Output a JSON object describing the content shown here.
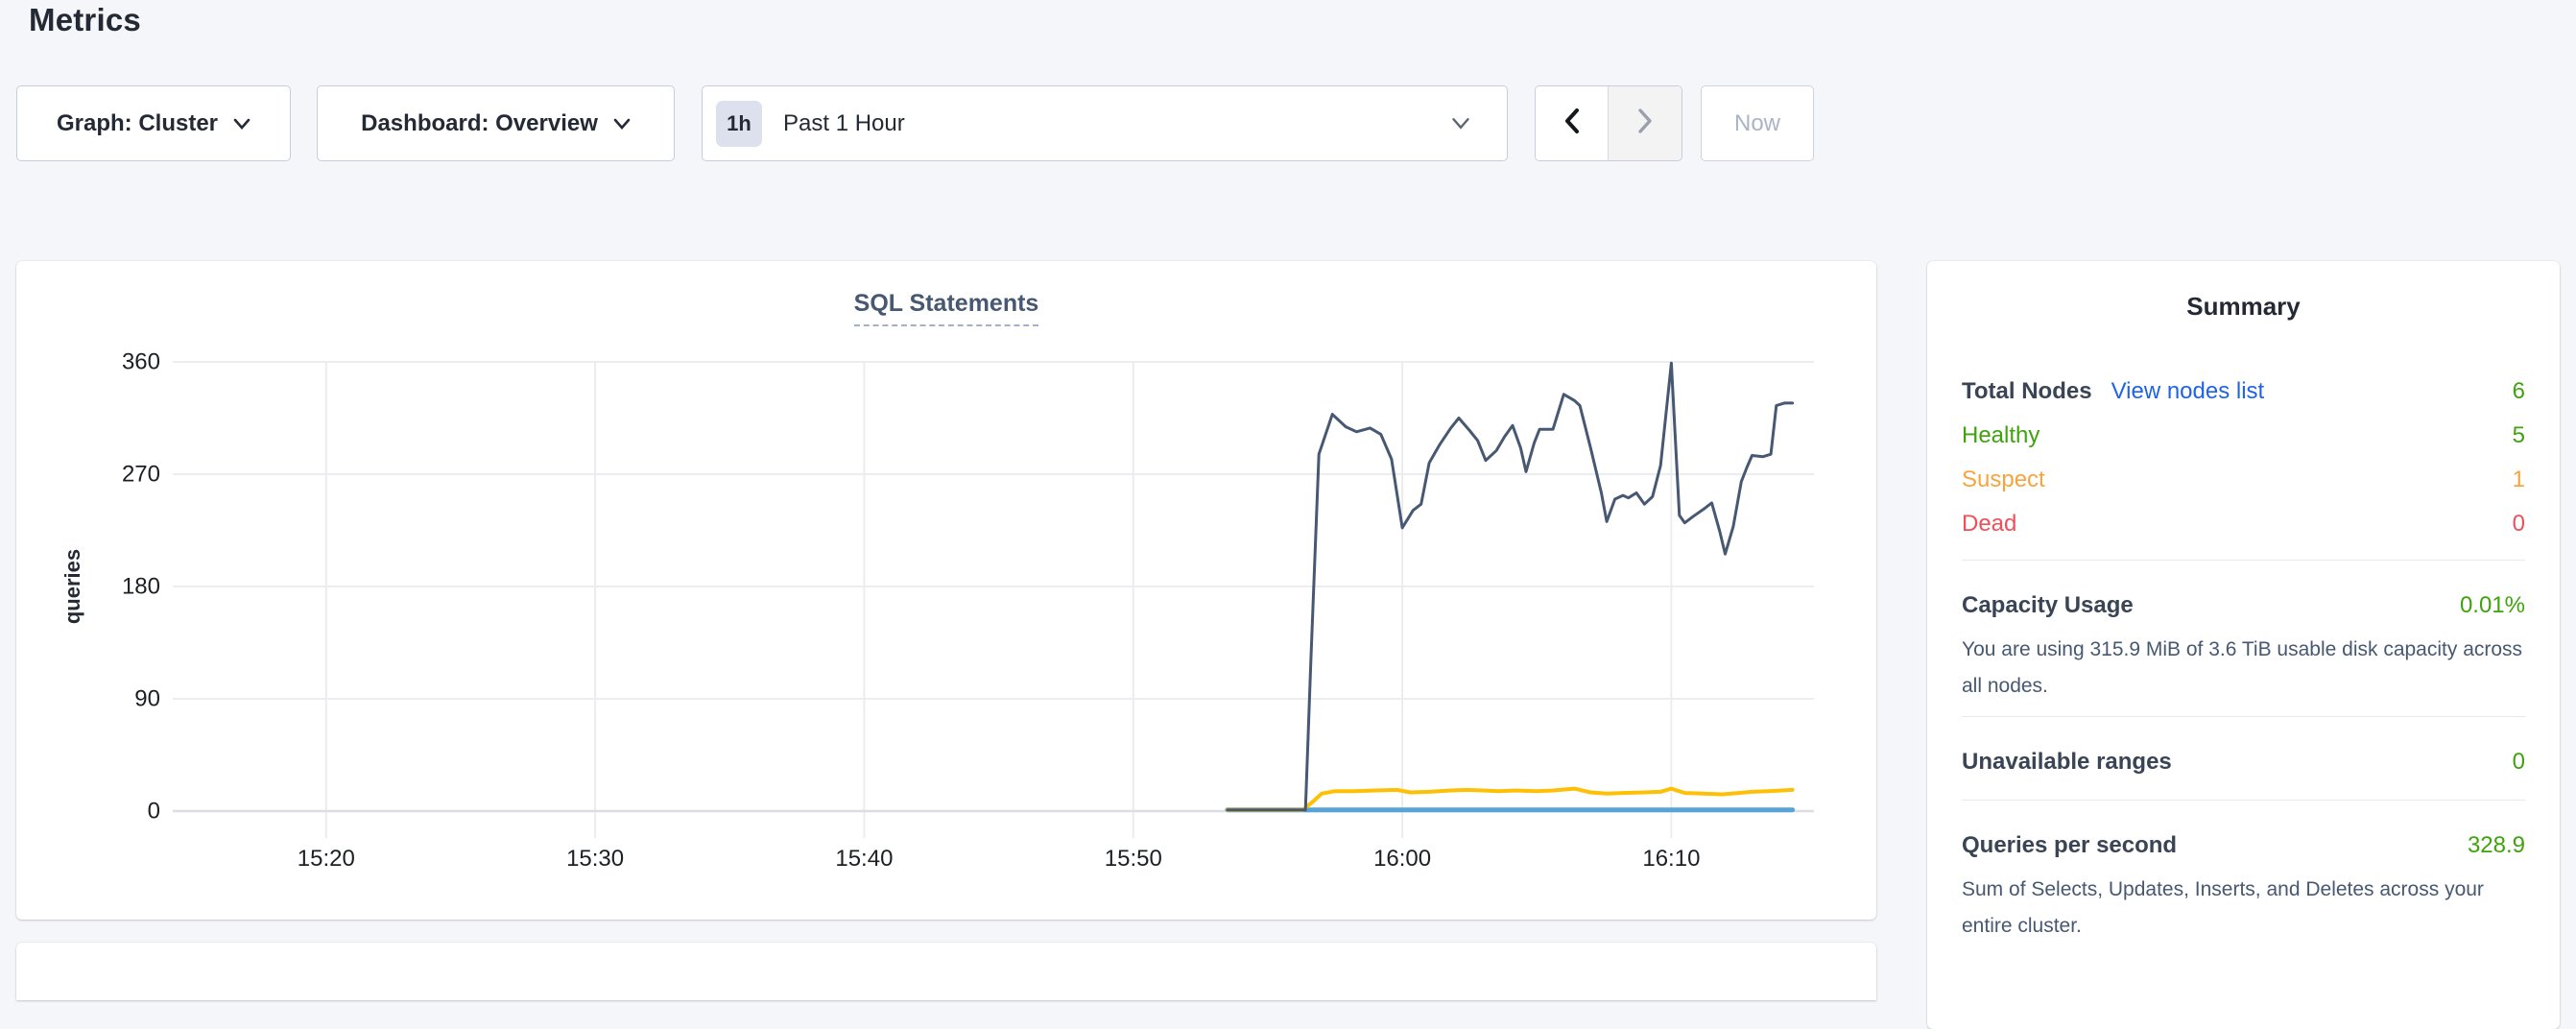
{
  "page": {
    "title": "Metrics"
  },
  "toolbar": {
    "graph_dropdown_label": "Graph: Cluster",
    "dashboard_dropdown_label": "Dashboard: Overview",
    "time_badge": "1h",
    "time_label": "Past 1 Hour",
    "now_label": "Now"
  },
  "chart_data": {
    "type": "line",
    "title": "SQL Statements",
    "ylabel": "queries",
    "xlabel": "",
    "x_axis_unit": "minutes after 15:00",
    "xlim": [
      14.3,
      75.3
    ],
    "ylim": [
      0,
      375
    ],
    "grid": true,
    "legend_position": "none",
    "y_ticks": [
      {
        "value": 0,
        "label": "0"
      },
      {
        "value": 90,
        "label": "90"
      },
      {
        "value": 180,
        "label": "180"
      },
      {
        "value": 270,
        "label": "270"
      },
      {
        "value": 360,
        "label": "360"
      }
    ],
    "x_ticks": [
      {
        "minute": 20,
        "label": "15:20"
      },
      {
        "minute": 30,
        "label": "15:30"
      },
      {
        "minute": 40,
        "label": "15:40"
      },
      {
        "minute": 50,
        "label": "15:50"
      },
      {
        "minute": 60,
        "label": "16:00"
      },
      {
        "minute": 70,
        "label": "16:10"
      }
    ],
    "series": [
      {
        "name": "blue-flat-series",
        "color": "#57a3d6",
        "stroke_width": 5,
        "points": [
          [
            53.5,
            1
          ],
          [
            74.5,
            1
          ]
        ]
      },
      {
        "name": "yellow-series",
        "color": "#fdc004",
        "stroke_width": 4,
        "points": [
          [
            53.5,
            1
          ],
          [
            56.3,
            1
          ],
          [
            56.7,
            8
          ],
          [
            57.0,
            14
          ],
          [
            57.5,
            16
          ],
          [
            58.2,
            16
          ],
          [
            59.0,
            16.5
          ],
          [
            59.8,
            17
          ],
          [
            60.3,
            15
          ],
          [
            61.0,
            15.5
          ],
          [
            61.8,
            16.5
          ],
          [
            62.4,
            17
          ],
          [
            63.0,
            16.5
          ],
          [
            63.6,
            16
          ],
          [
            64.2,
            16.5
          ],
          [
            65.0,
            16
          ],
          [
            65.6,
            16.5
          ],
          [
            66.4,
            18
          ],
          [
            67.0,
            15
          ],
          [
            67.6,
            14
          ],
          [
            68.2,
            14.5
          ],
          [
            69.0,
            15
          ],
          [
            69.6,
            15.5
          ],
          [
            70.0,
            18
          ],
          [
            70.5,
            14.5
          ],
          [
            71.2,
            14
          ],
          [
            71.9,
            13.5
          ],
          [
            72.5,
            14.5
          ],
          [
            73.0,
            15.5
          ],
          [
            73.6,
            16
          ],
          [
            74.1,
            16.5
          ],
          [
            74.5,
            17
          ]
        ]
      },
      {
        "name": "navy-series",
        "color": "#475872",
        "stroke_width": 3,
        "points": [
          [
            53.5,
            1
          ],
          [
            56.4,
            1
          ],
          [
            56.6,
            120
          ],
          [
            56.9,
            286
          ],
          [
            57.4,
            318
          ],
          [
            57.9,
            308
          ],
          [
            58.3,
            304
          ],
          [
            58.8,
            307
          ],
          [
            59.2,
            302
          ],
          [
            59.6,
            282
          ],
          [
            60.0,
            227
          ],
          [
            60.4,
            241
          ],
          [
            60.7,
            246
          ],
          [
            61.0,
            279
          ],
          [
            61.4,
            294
          ],
          [
            61.8,
            307
          ],
          [
            62.1,
            315
          ],
          [
            62.5,
            305
          ],
          [
            62.8,
            297
          ],
          [
            63.1,
            281
          ],
          [
            63.5,
            289
          ],
          [
            63.8,
            300
          ],
          [
            64.1,
            309
          ],
          [
            64.4,
            291
          ],
          [
            64.6,
            272
          ],
          [
            64.9,
            295
          ],
          [
            65.1,
            306
          ],
          [
            65.6,
            306
          ],
          [
            66.0,
            334
          ],
          [
            66.4,
            329
          ],
          [
            66.6,
            325
          ],
          [
            67.0,
            291
          ],
          [
            67.4,
            255
          ],
          [
            67.6,
            232
          ],
          [
            67.9,
            250
          ],
          [
            68.2,
            253
          ],
          [
            68.4,
            251
          ],
          [
            68.7,
            255
          ],
          [
            69.0,
            246
          ],
          [
            69.3,
            252
          ],
          [
            69.6,
            277
          ],
          [
            70.0,
            359
          ],
          [
            70.3,
            237
          ],
          [
            70.5,
            231
          ],
          [
            70.8,
            236
          ],
          [
            71.2,
            242
          ],
          [
            71.5,
            247
          ],
          [
            71.8,
            224
          ],
          [
            72.0,
            206
          ],
          [
            72.3,
            228
          ],
          [
            72.6,
            264
          ],
          [
            72.8,
            275
          ],
          [
            73.0,
            285
          ],
          [
            73.4,
            284
          ],
          [
            73.7,
            286
          ],
          [
            73.9,
            325
          ],
          [
            74.2,
            327
          ],
          [
            74.5,
            327
          ]
        ]
      }
    ]
  },
  "summary": {
    "title": "Summary",
    "total_nodes_label": "Total Nodes",
    "view_nodes_link": "View nodes list",
    "total_nodes_value": "6",
    "node_rows": [
      {
        "label": "Healthy",
        "value": "5",
        "status": "healthy"
      },
      {
        "label": "Suspect",
        "value": "1",
        "status": "suspect"
      },
      {
        "label": "Dead",
        "value": "0",
        "status": "dead"
      }
    ],
    "capacity_label": "Capacity Usage",
    "capacity_value": "0.01%",
    "capacity_description": "You are using 315.9 MiB of 3.6 TiB usable disk capacity across all nodes.",
    "unavailable_label": "Unavailable ranges",
    "unavailable_value": "0",
    "qps_label": "Queries per second",
    "qps_value": "328.9",
    "qps_description": "Sum of Selects, Updates, Inserts, and Deletes across your entire cluster."
  },
  "colors": {
    "page_background": "#f5f6fa",
    "dark_text": "#242a35",
    "slate_text": "#475872",
    "healthy_green": "#3ea30c",
    "suspect_orange": "#f7a43d",
    "dead_red": "#ef4f58",
    "link_blue": "#1f63e6",
    "navy_line": "#475872",
    "yellow_line": "#fdc004",
    "blue_line": "#57a3d6"
  }
}
